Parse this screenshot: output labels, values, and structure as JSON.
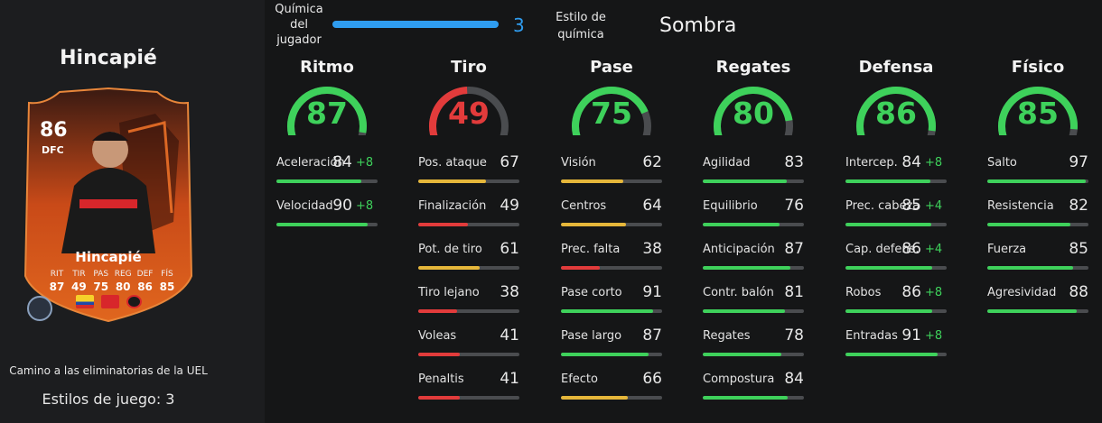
{
  "player": {
    "name": "Hincapié",
    "card_name": "Hincapié",
    "rating": "86",
    "position": "DFC",
    "campaign": "Camino a las eliminatorias de la UEL",
    "playstyles": "Estilos de juego: 3",
    "card_stats": [
      {
        "label": "RIT",
        "value": "87"
      },
      {
        "label": "TIR",
        "value": "49"
      },
      {
        "label": "PAS",
        "value": "75"
      },
      {
        "label": "REG",
        "value": "80"
      },
      {
        "label": "DEF",
        "value": "86"
      },
      {
        "label": "FÍS",
        "value": "85"
      }
    ]
  },
  "chemistry": {
    "label": "Química del jugador",
    "value": "3",
    "max": 3,
    "style_label": "Estilo de química",
    "style_value": "Sombra"
  },
  "colors": {
    "high": "#3ed15b",
    "mid": "#e6b73a",
    "low": "#e23b3b",
    "chem": "#2f9df0"
  },
  "categories": [
    {
      "name": "Ritmo",
      "value": "87",
      "stats": [
        {
          "name": "Aceleración",
          "value": "84",
          "bonus": "+8"
        },
        {
          "name": "Velocidad",
          "value": "90",
          "bonus": "+8"
        }
      ]
    },
    {
      "name": "Tiro",
      "value": "49",
      "stats": [
        {
          "name": "Pos. ataque",
          "value": "67",
          "bonus": ""
        },
        {
          "name": "Finalización",
          "value": "49",
          "bonus": ""
        },
        {
          "name": "Pot. de tiro",
          "value": "61",
          "bonus": ""
        },
        {
          "name": "Tiro lejano",
          "value": "38",
          "bonus": ""
        },
        {
          "name": "Voleas",
          "value": "41",
          "bonus": ""
        },
        {
          "name": "Penaltis",
          "value": "41",
          "bonus": ""
        }
      ]
    },
    {
      "name": "Pase",
      "value": "75",
      "stats": [
        {
          "name": "Visión",
          "value": "62",
          "bonus": ""
        },
        {
          "name": "Centros",
          "value": "64",
          "bonus": ""
        },
        {
          "name": "Prec. falta",
          "value": "38",
          "bonus": ""
        },
        {
          "name": "Pase corto",
          "value": "91",
          "bonus": ""
        },
        {
          "name": "Pase largo",
          "value": "87",
          "bonus": ""
        },
        {
          "name": "Efecto",
          "value": "66",
          "bonus": ""
        }
      ]
    },
    {
      "name": "Regates",
      "value": "80",
      "stats": [
        {
          "name": "Agilidad",
          "value": "83",
          "bonus": ""
        },
        {
          "name": "Equilibrio",
          "value": "76",
          "bonus": ""
        },
        {
          "name": "Anticipación",
          "value": "87",
          "bonus": ""
        },
        {
          "name": "Contr. balón",
          "value": "81",
          "bonus": ""
        },
        {
          "name": "Regates",
          "value": "78",
          "bonus": ""
        },
        {
          "name": "Compostura",
          "value": "84",
          "bonus": ""
        }
      ]
    },
    {
      "name": "Defensa",
      "value": "86",
      "stats": [
        {
          "name": "Intercep.",
          "value": "84",
          "bonus": "+8"
        },
        {
          "name": "Prec. cabeza",
          "value": "85",
          "bonus": "+4"
        },
        {
          "name": "Cap. defens.",
          "value": "86",
          "bonus": "+4"
        },
        {
          "name": "Robos",
          "value": "86",
          "bonus": "+8"
        },
        {
          "name": "Entradas",
          "value": "91",
          "bonus": "+8"
        }
      ]
    },
    {
      "name": "Físico",
      "value": "85",
      "stats": [
        {
          "name": "Salto",
          "value": "97",
          "bonus": ""
        },
        {
          "name": "Resistencia",
          "value": "82",
          "bonus": ""
        },
        {
          "name": "Fuerza",
          "value": "85",
          "bonus": ""
        },
        {
          "name": "Agresividad",
          "value": "88",
          "bonus": ""
        }
      ]
    }
  ]
}
